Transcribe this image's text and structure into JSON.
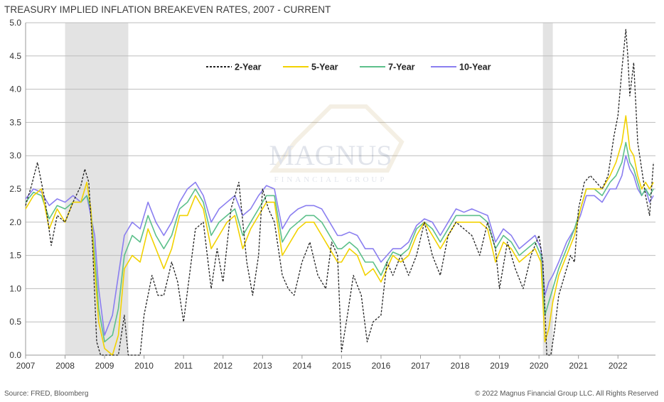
{
  "title": "TREASURY IMPLIED INFLATION BREAKEVEN RATES, 2007 - CURRENT",
  "footer": {
    "source": "Source: FRED, Bloomberg",
    "copyright": "© 2022 Magnus Financial Group LLC. All Rights Reserved"
  },
  "watermark": {
    "name": "MAGNUS",
    "sub": "FINANCIAL GROUP"
  },
  "chart_data": {
    "type": "line",
    "title": "TREASURY IMPLIED INFLATION BREAKEVEN RATES, 2007 - CURRENT",
    "xlabel": "",
    "ylabel": "",
    "xlim": [
      2007.0,
      2022.95
    ],
    "ylim": [
      0,
      5.0
    ],
    "yticks": [
      "0.0",
      "0.5",
      "1.0",
      "1.5",
      "2.0",
      "2.5",
      "3.0",
      "3.5",
      "4.0",
      "4.5",
      "5.0"
    ],
    "xticks": [
      "2007",
      "2008",
      "2009",
      "2010",
      "2011",
      "2012",
      "2013",
      "2014",
      "2015",
      "2016",
      "2017",
      "2018",
      "2019",
      "2020",
      "2021",
      "2022"
    ],
    "grid": "horizontal",
    "legend_position": "top-center",
    "recessions": [
      [
        2008.0,
        2009.6
      ],
      [
        2020.1,
        2020.35
      ]
    ],
    "series": [
      {
        "name": "2-Year",
        "color": "#222222",
        "style": "dashed",
        "x": [
          2007.0,
          2007.15,
          2007.3,
          2007.5,
          2007.65,
          2007.8,
          2008.0,
          2008.2,
          2008.4,
          2008.5,
          2008.6,
          2008.7,
          2008.8,
          2008.9,
          2009.0,
          2009.2,
          2009.35,
          2009.5,
          2009.6,
          2009.75,
          2009.9,
          2010.0,
          2010.2,
          2010.35,
          2010.5,
          2010.7,
          2010.85,
          2011.0,
          2011.15,
          2011.3,
          2011.5,
          2011.7,
          2011.85,
          2012.0,
          2012.2,
          2012.4,
          2012.6,
          2012.75,
          2012.9,
          2013.0,
          2013.15,
          2013.3,
          2013.5,
          2013.65,
          2013.8,
          2014.0,
          2014.2,
          2014.4,
          2014.6,
          2014.75,
          2014.9,
          2015.0,
          2015.15,
          2015.3,
          2015.5,
          2015.65,
          2015.8,
          2016.0,
          2016.15,
          2016.3,
          2016.5,
          2016.7,
          2016.9,
          2017.1,
          2017.3,
          2017.5,
          2017.7,
          2017.9,
          2018.1,
          2018.3,
          2018.5,
          2018.7,
          2018.9,
          2019.0,
          2019.2,
          2019.4,
          2019.6,
          2019.8,
          2020.0,
          2020.1,
          2020.2,
          2020.25,
          2020.3,
          2020.4,
          2020.5,
          2020.6,
          2020.7,
          2020.8,
          2020.9,
          2021.0,
          2021.15,
          2021.3,
          2021.45,
          2021.6,
          2021.75,
          2021.9,
          2022.0,
          2022.1,
          2022.2,
          2022.25,
          2022.3,
          2022.4,
          2022.5,
          2022.6,
          2022.7,
          2022.8,
          2022.9
        ],
        "y": [
          2.25,
          2.55,
          2.9,
          2.3,
          1.65,
          2.1,
          2.0,
          2.3,
          2.55,
          2.8,
          2.6,
          1.6,
          0.2,
          0.0,
          0.0,
          0.0,
          0.0,
          0.6,
          0.0,
          0.0,
          0.0,
          0.6,
          1.2,
          0.9,
          0.9,
          1.4,
          1.1,
          0.5,
          1.2,
          1.9,
          2.0,
          1.0,
          1.6,
          1.1,
          2.2,
          2.6,
          1.4,
          0.9,
          1.5,
          2.5,
          2.2,
          2.0,
          1.2,
          1.0,
          0.9,
          1.4,
          1.7,
          1.2,
          1.0,
          1.7,
          1.5,
          0.05,
          0.6,
          1.2,
          0.9,
          0.2,
          0.5,
          0.6,
          1.4,
          1.2,
          1.5,
          1.2,
          1.5,
          2.0,
          1.5,
          1.2,
          1.8,
          2.0,
          1.9,
          1.8,
          1.5,
          2.0,
          1.6,
          1.0,
          1.7,
          1.3,
          1.0,
          1.5,
          1.8,
          1.4,
          0.0,
          0.0,
          0.0,
          0.4,
          0.9,
          1.1,
          1.3,
          1.5,
          1.4,
          2.2,
          2.6,
          2.7,
          2.6,
          2.5,
          2.7,
          3.3,
          3.6,
          4.3,
          4.9,
          4.5,
          3.9,
          4.4,
          3.2,
          2.8,
          2.4,
          2.1,
          2.9
        ]
      },
      {
        "name": "5-Year",
        "color": "#f2d200",
        "style": "solid",
        "x": [
          2007.0,
          2007.2,
          2007.4,
          2007.6,
          2007.8,
          2008.0,
          2008.2,
          2008.4,
          2008.55,
          2008.65,
          2008.75,
          2008.85,
          2009.0,
          2009.2,
          2009.35,
          2009.5,
          2009.7,
          2009.9,
          2010.1,
          2010.3,
          2010.5,
          2010.7,
          2010.9,
          2011.1,
          2011.3,
          2011.5,
          2011.7,
          2011.9,
          2012.1,
          2012.3,
          2012.5,
          2012.7,
          2012.9,
          2013.1,
          2013.3,
          2013.5,
          2013.7,
          2013.9,
          2014.1,
          2014.3,
          2014.5,
          2014.7,
          2014.9,
          2015.0,
          2015.2,
          2015.4,
          2015.6,
          2015.8,
          2016.0,
          2016.15,
          2016.3,
          2016.5,
          2016.7,
          2016.9,
          2017.1,
          2017.3,
          2017.5,
          2017.7,
          2017.9,
          2018.1,
          2018.3,
          2018.5,
          2018.7,
          2018.9,
          2019.1,
          2019.3,
          2019.5,
          2019.7,
          2019.9,
          2020.05,
          2020.15,
          2020.25,
          2020.35,
          2020.5,
          2020.7,
          2020.9,
          2021.05,
          2021.2,
          2021.4,
          2021.6,
          2021.8,
          2021.95,
          2022.1,
          2022.2,
          2022.3,
          2022.4,
          2022.5,
          2022.6,
          2022.7,
          2022.8,
          2022.9
        ],
        "y": [
          2.2,
          2.4,
          2.5,
          1.9,
          2.2,
          2.0,
          2.3,
          2.3,
          2.6,
          2.2,
          1.3,
          0.5,
          0.1,
          0.0,
          0.3,
          1.3,
          1.5,
          1.4,
          1.9,
          1.6,
          1.3,
          1.6,
          2.1,
          2.1,
          2.4,
          2.2,
          1.6,
          1.8,
          2.0,
          2.1,
          1.6,
          1.9,
          2.1,
          2.3,
          2.3,
          1.5,
          1.7,
          1.9,
          2.0,
          2.0,
          1.8,
          1.6,
          1.4,
          1.4,
          1.6,
          1.5,
          1.2,
          1.3,
          1.1,
          1.3,
          1.5,
          1.4,
          1.5,
          1.8,
          2.0,
          1.8,
          1.6,
          1.8,
          2.0,
          2.0,
          2.0,
          2.0,
          1.9,
          1.4,
          1.7,
          1.6,
          1.4,
          1.5,
          1.6,
          1.4,
          0.2,
          0.4,
          0.8,
          1.2,
          1.5,
          1.8,
          2.2,
          2.5,
          2.5,
          2.5,
          2.7,
          2.9,
          3.2,
          3.6,
          3.1,
          3.0,
          2.7,
          2.5,
          2.6,
          2.5,
          2.6
        ]
      },
      {
        "name": "7-Year",
        "color": "#5cc08a",
        "style": "solid",
        "x": [
          2007.0,
          2007.2,
          2007.4,
          2007.6,
          2007.8,
          2008.0,
          2008.2,
          2008.4,
          2008.55,
          2008.65,
          2008.75,
          2008.85,
          2009.0,
          2009.2,
          2009.35,
          2009.5,
          2009.7,
          2009.9,
          2010.1,
          2010.3,
          2010.5,
          2010.7,
          2010.9,
          2011.1,
          2011.3,
          2011.5,
          2011.7,
          2011.9,
          2012.1,
          2012.3,
          2012.5,
          2012.7,
          2012.9,
          2013.1,
          2013.3,
          2013.5,
          2013.7,
          2013.9,
          2014.1,
          2014.3,
          2014.5,
          2014.7,
          2014.9,
          2015.0,
          2015.2,
          2015.4,
          2015.6,
          2015.8,
          2016.0,
          2016.15,
          2016.3,
          2016.5,
          2016.7,
          2016.9,
          2017.1,
          2017.3,
          2017.5,
          2017.7,
          2017.9,
          2018.1,
          2018.3,
          2018.5,
          2018.7,
          2018.9,
          2019.1,
          2019.3,
          2019.5,
          2019.7,
          2019.9,
          2020.05,
          2020.15,
          2020.25,
          2020.35,
          2020.5,
          2020.7,
          2020.9,
          2021.05,
          2021.2,
          2021.4,
          2021.6,
          2021.8,
          2021.95,
          2022.1,
          2022.2,
          2022.3,
          2022.4,
          2022.5,
          2022.6,
          2022.7,
          2022.8,
          2022.9
        ],
        "y": [
          2.3,
          2.45,
          2.4,
          2.05,
          2.25,
          2.2,
          2.3,
          2.3,
          2.4,
          2.2,
          1.5,
          0.7,
          0.2,
          0.3,
          0.7,
          1.5,
          1.8,
          1.7,
          2.1,
          1.8,
          1.6,
          1.8,
          2.2,
          2.3,
          2.5,
          2.3,
          1.8,
          2.0,
          2.1,
          2.2,
          1.8,
          2.0,
          2.2,
          2.4,
          2.4,
          1.7,
          1.9,
          2.0,
          2.1,
          2.1,
          2.0,
          1.8,
          1.6,
          1.6,
          1.7,
          1.6,
          1.4,
          1.4,
          1.2,
          1.4,
          1.55,
          1.5,
          1.6,
          1.9,
          2.0,
          1.9,
          1.7,
          1.9,
          2.1,
          2.1,
          2.1,
          2.1,
          2.0,
          1.6,
          1.8,
          1.7,
          1.5,
          1.6,
          1.7,
          1.5,
          0.6,
          0.8,
          1.0,
          1.3,
          1.6,
          1.9,
          2.2,
          2.5,
          2.5,
          2.4,
          2.6,
          2.7,
          2.9,
          3.2,
          2.9,
          2.8,
          2.6,
          2.4,
          2.5,
          2.4,
          2.5
        ]
      },
      {
        "name": "10-Year",
        "color": "#8a7ef0",
        "style": "solid",
        "x": [
          2007.0,
          2007.2,
          2007.4,
          2007.6,
          2007.8,
          2008.0,
          2008.2,
          2008.4,
          2008.55,
          2008.65,
          2008.75,
          2008.85,
          2009.0,
          2009.2,
          2009.35,
          2009.5,
          2009.7,
          2009.9,
          2010.1,
          2010.3,
          2010.5,
          2010.7,
          2010.9,
          2011.1,
          2011.3,
          2011.5,
          2011.7,
          2011.9,
          2012.1,
          2012.3,
          2012.5,
          2012.7,
          2012.9,
          2013.1,
          2013.3,
          2013.5,
          2013.7,
          2013.9,
          2014.1,
          2014.3,
          2014.5,
          2014.7,
          2014.9,
          2015.0,
          2015.2,
          2015.4,
          2015.6,
          2015.8,
          2016.0,
          2016.15,
          2016.3,
          2016.5,
          2016.7,
          2016.9,
          2017.1,
          2017.3,
          2017.5,
          2017.7,
          2017.9,
          2018.1,
          2018.3,
          2018.5,
          2018.7,
          2018.9,
          2019.1,
          2019.3,
          2019.5,
          2019.7,
          2019.9,
          2020.05,
          2020.15,
          2020.25,
          2020.35,
          2020.5,
          2020.7,
          2020.9,
          2021.05,
          2021.2,
          2021.4,
          2021.6,
          2021.8,
          2021.95,
          2022.1,
          2022.2,
          2022.3,
          2022.4,
          2022.5,
          2022.6,
          2022.7,
          2022.8,
          2022.9
        ],
        "y": [
          2.35,
          2.5,
          2.45,
          2.25,
          2.35,
          2.3,
          2.4,
          2.3,
          2.4,
          2.1,
          1.8,
          1.0,
          0.3,
          0.6,
          1.2,
          1.8,
          2.0,
          1.9,
          2.3,
          2.0,
          1.8,
          2.0,
          2.3,
          2.5,
          2.6,
          2.4,
          2.0,
          2.2,
          2.3,
          2.4,
          2.1,
          2.2,
          2.4,
          2.55,
          2.5,
          1.9,
          2.1,
          2.2,
          2.25,
          2.25,
          2.2,
          2.0,
          1.8,
          1.8,
          1.85,
          1.8,
          1.6,
          1.6,
          1.4,
          1.5,
          1.6,
          1.6,
          1.7,
          1.95,
          2.05,
          2.0,
          1.8,
          2.0,
          2.2,
          2.15,
          2.2,
          2.15,
          2.1,
          1.7,
          1.9,
          1.8,
          1.6,
          1.7,
          1.8,
          1.6,
          0.9,
          1.1,
          1.2,
          1.4,
          1.7,
          1.9,
          2.1,
          2.4,
          2.4,
          2.3,
          2.5,
          2.5,
          2.7,
          3.0,
          2.8,
          2.7,
          2.5,
          2.4,
          2.5,
          2.3,
          2.4
        ]
      }
    ]
  }
}
